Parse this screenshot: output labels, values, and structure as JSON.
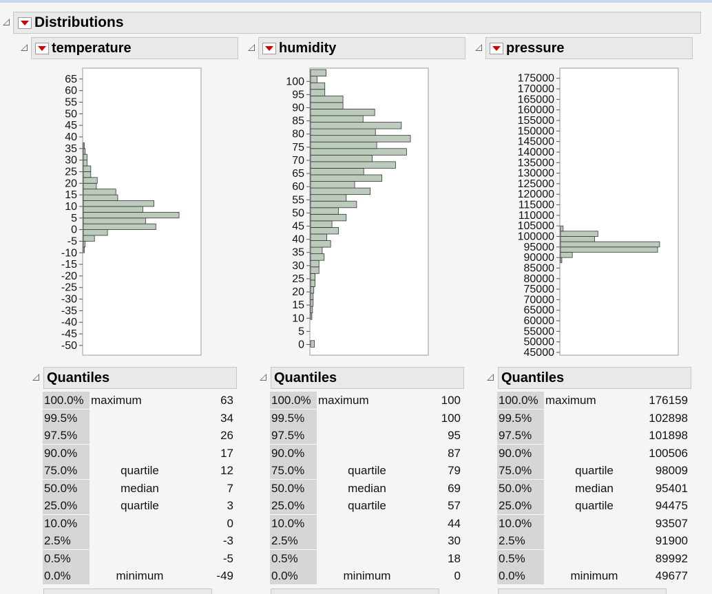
{
  "report": {
    "title": "Distributions"
  },
  "panels": [
    {
      "title": "temperature",
      "axis": {
        "min": -50,
        "max": 65,
        "step": 5
      },
      "bins": [
        {
          "lo": -10,
          "hi": -7.5,
          "count": 1
        },
        {
          "lo": -7.5,
          "hi": -5,
          "count": 2
        },
        {
          "lo": -5,
          "hi": -2.5,
          "count": 12
        },
        {
          "lo": -2.5,
          "hi": 0,
          "count": 26
        },
        {
          "lo": 0,
          "hi": 2.5,
          "count": 78
        },
        {
          "lo": 2.5,
          "hi": 5,
          "count": 67
        },
        {
          "lo": 5,
          "hi": 7.5,
          "count": 103
        },
        {
          "lo": 7.5,
          "hi": 10,
          "count": 64
        },
        {
          "lo": 10,
          "hi": 12.5,
          "count": 76
        },
        {
          "lo": 12.5,
          "hi": 15,
          "count": 37
        },
        {
          "lo": 15,
          "hi": 17.5,
          "count": 35
        },
        {
          "lo": 17.5,
          "hi": 20,
          "count": 14
        },
        {
          "lo": 20,
          "hi": 22.5,
          "count": 15
        },
        {
          "lo": 22.5,
          "hi": 25,
          "count": 8
        },
        {
          "lo": 25,
          "hi": 27.5,
          "count": 8
        },
        {
          "lo": 27.5,
          "hi": 30,
          "count": 4
        },
        {
          "lo": 30,
          "hi": 32.5,
          "count": 4
        },
        {
          "lo": 32.5,
          "hi": 35,
          "count": 2
        },
        {
          "lo": 35,
          "hi": 37.5,
          "count": 1
        }
      ],
      "max_count": 120,
      "quantiles_title": "Quantiles",
      "quantiles": [
        {
          "pct": "100.0%",
          "name": "maximum",
          "value": "63"
        },
        {
          "pct": "99.5%",
          "name": "",
          "value": "34"
        },
        {
          "pct": "97.5%",
          "name": "",
          "value": "26"
        },
        {
          "pct": "90.0%",
          "name": "",
          "value": "17"
        },
        {
          "pct": "75.0%",
          "name": "quartile",
          "value": "12"
        },
        {
          "pct": "50.0%",
          "name": "median",
          "value": "7"
        },
        {
          "pct": "25.0%",
          "name": "quartile",
          "value": "3"
        },
        {
          "pct": "10.0%",
          "name": "",
          "value": "0"
        },
        {
          "pct": "2.5%",
          "name": "",
          "value": "-3"
        },
        {
          "pct": "0.5%",
          "name": "",
          "value": "-5"
        },
        {
          "pct": "0.0%",
          "name": "minimum",
          "value": "-49"
        }
      ]
    },
    {
      "title": "humidity",
      "axis": {
        "min": 0,
        "max": 100,
        "step": 5,
        "plot_min": -3,
        "plot_max": 104
      },
      "bins": [
        {
          "lo": -1,
          "hi": 1.5,
          "count": 6
        },
        {
          "lo": 9.5,
          "hi": 12,
          "count": 2
        },
        {
          "lo": 12,
          "hi": 14.5,
          "count": 3
        },
        {
          "lo": 14.5,
          "hi": 17,
          "count": 4
        },
        {
          "lo": 17,
          "hi": 19.5,
          "count": 4
        },
        {
          "lo": 19.5,
          "hi": 22,
          "count": 5
        },
        {
          "lo": 22,
          "hi": 24.5,
          "count": 7
        },
        {
          "lo": 24.5,
          "hi": 27,
          "count": 7
        },
        {
          "lo": 27,
          "hi": 29.5,
          "count": 13
        },
        {
          "lo": 29.5,
          "hi": 32,
          "count": 13
        },
        {
          "lo": 32,
          "hi": 34.5,
          "count": 21
        },
        {
          "lo": 34.5,
          "hi": 37,
          "count": 18
        },
        {
          "lo": 37,
          "hi": 39.5,
          "count": 31
        },
        {
          "lo": 39.5,
          "hi": 42,
          "count": 25
        },
        {
          "lo": 42,
          "hi": 44.5,
          "count": 43
        },
        {
          "lo": 44.5,
          "hi": 47,
          "count": 33
        },
        {
          "lo": 47,
          "hi": 49.5,
          "count": 55
        },
        {
          "lo": 49.5,
          "hi": 52,
          "count": 43
        },
        {
          "lo": 52,
          "hi": 54.5,
          "count": 71
        },
        {
          "lo": 54.5,
          "hi": 57,
          "count": 55
        },
        {
          "lo": 57,
          "hi": 59.5,
          "count": 92
        },
        {
          "lo": 59.5,
          "hi": 62,
          "count": 68
        },
        {
          "lo": 62,
          "hi": 64.5,
          "count": 110
        },
        {
          "lo": 64.5,
          "hi": 67,
          "count": 82
        },
        {
          "lo": 67,
          "hi": 69.5,
          "count": 131
        },
        {
          "lo": 69.5,
          "hi": 72,
          "count": 95
        },
        {
          "lo": 72,
          "hi": 74.5,
          "count": 148
        },
        {
          "lo": 74.5,
          "hi": 77,
          "count": 102
        },
        {
          "lo": 77,
          "hi": 79.5,
          "count": 154
        },
        {
          "lo": 79.5,
          "hi": 82,
          "count": 100
        },
        {
          "lo": 82,
          "hi": 84.5,
          "count": 140
        },
        {
          "lo": 84.5,
          "hi": 87,
          "count": 81
        },
        {
          "lo": 87,
          "hi": 89.5,
          "count": 99
        },
        {
          "lo": 89.5,
          "hi": 92,
          "count": 50
        },
        {
          "lo": 92,
          "hi": 94.5,
          "count": 50
        },
        {
          "lo": 94.5,
          "hi": 97,
          "count": 22
        },
        {
          "lo": 97,
          "hi": 99.5,
          "count": 22
        },
        {
          "lo": 99.5,
          "hi": 102,
          "count": 10
        },
        {
          "lo": 102,
          "hi": 104.5,
          "count": 24
        }
      ],
      "max_count": 172,
      "quantiles_title": "Quantiles",
      "quantiles": [
        {
          "pct": "100.0%",
          "name": "maximum",
          "value": "100"
        },
        {
          "pct": "99.5%",
          "name": "",
          "value": "100"
        },
        {
          "pct": "97.5%",
          "name": "",
          "value": "95"
        },
        {
          "pct": "90.0%",
          "name": "",
          "value": "87"
        },
        {
          "pct": "75.0%",
          "name": "quartile",
          "value": "79"
        },
        {
          "pct": "50.0%",
          "name": "median",
          "value": "69"
        },
        {
          "pct": "25.0%",
          "name": "quartile",
          "value": "57"
        },
        {
          "pct": "10.0%",
          "name": "",
          "value": "44"
        },
        {
          "pct": "2.5%",
          "name": "",
          "value": "30"
        },
        {
          "pct": "0.5%",
          "name": "",
          "value": "18"
        },
        {
          "pct": "0.0%",
          "name": "minimum",
          "value": "0"
        }
      ]
    },
    {
      "title": "pressure",
      "axis": {
        "min": 45000,
        "max": 175000,
        "step": 5000,
        "plot_min": 45000,
        "plot_max": 178500
      },
      "bins": [
        {
          "lo": 87500,
          "hi": 90000,
          "count": 2
        },
        {
          "lo": 90000,
          "hi": 92500,
          "count": 18
        },
        {
          "lo": 92500,
          "hi": 95000,
          "count": 148
        },
        {
          "lo": 95000,
          "hi": 97500,
          "count": 151
        },
        {
          "lo": 97500,
          "hi": 100000,
          "count": 52
        },
        {
          "lo": 100000,
          "hi": 102500,
          "count": 57
        },
        {
          "lo": 102500,
          "hi": 105000,
          "count": 4
        }
      ],
      "max_count": 170,
      "quantiles_title": "Quantiles",
      "quantiles": [
        {
          "pct": "100.0%",
          "name": "maximum",
          "value": "176159"
        },
        {
          "pct": "99.5%",
          "name": "",
          "value": "102898"
        },
        {
          "pct": "97.5%",
          "name": "",
          "value": "101898"
        },
        {
          "pct": "90.0%",
          "name": "",
          "value": "100506"
        },
        {
          "pct": "75.0%",
          "name": "quartile",
          "value": "98009"
        },
        {
          "pct": "50.0%",
          "name": "median",
          "value": "95401"
        },
        {
          "pct": "25.0%",
          "name": "quartile",
          "value": "94475"
        },
        {
          "pct": "10.0%",
          "name": "",
          "value": "93507"
        },
        {
          "pct": "2.5%",
          "name": "",
          "value": "91900"
        },
        {
          "pct": "0.5%",
          "name": "",
          "value": "89992"
        },
        {
          "pct": "0.0%",
          "name": "minimum",
          "value": "49677"
        }
      ]
    }
  ],
  "colors": {
    "bar_fill": "#bccbbc",
    "bar_stroke": "#333333",
    "header_bg": "#e9e9e9",
    "percent_bg": "#d6d6d6",
    "menu_arrow": "#d10000"
  }
}
